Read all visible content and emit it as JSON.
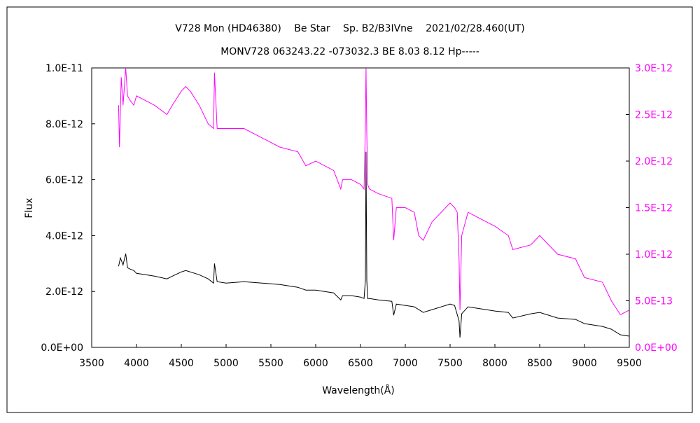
{
  "header": {
    "title": "V728 Mon (HD46380)　 Be Star　 Sp. B2/B3IVne　 2021/02/28.460(UT)",
    "subtitle": "MONV728 063243.22 -073032.3 BE 8.03 8.12 Hp-----"
  },
  "chart_data": {
    "type": "line",
    "xlabel": "Wavelength(Å)",
    "ylabel": "Flux",
    "xlim": [
      3500,
      9500
    ],
    "xticks": [
      3500,
      4000,
      4500,
      5000,
      5500,
      6000,
      6500,
      7000,
      7500,
      8000,
      8500,
      9000,
      9500
    ],
    "y_left": {
      "lim": [
        0,
        1e-11
      ],
      "ticks": [
        0,
        2e-12,
        4e-12,
        6e-12,
        8e-12,
        1e-11
      ],
      "tick_labels": [
        "0.0E+00",
        "2.0E-12",
        "4.0E-12",
        "6.0E-12",
        "8.0E-12",
        "1.0E-11"
      ]
    },
    "y_right": {
      "lim": [
        0,
        3e-12
      ],
      "ticks": [
        0,
        5e-13,
        1e-12,
        1.5e-12,
        2e-12,
        2.5e-12,
        3e-12
      ],
      "tick_labels": [
        "0.0E+00",
        "5.0E-13",
        "1.0E-12",
        "1.5E-12",
        "2.0E-12",
        "2.5E-12",
        "3.0E-12"
      ],
      "color": "#ff00ff"
    },
    "series": [
      {
        "axis": "left",
        "color": "#000000",
        "x": [
          3800,
          3820,
          3850,
          3880,
          3900,
          3930,
          3970,
          4000,
          4100,
          4200,
          4340,
          4400,
          4500,
          4550,
          4700,
          4800,
          4860,
          4870,
          4900,
          5000,
          5200,
          5400,
          5600,
          5800,
          5890,
          6000,
          6200,
          6280,
          6300,
          6400,
          6500,
          6540,
          6555,
          6562,
          6570,
          6580,
          6600,
          6700,
          6850,
          6870,
          6900,
          7000,
          7100,
          7200,
          7300,
          7500,
          7550,
          7600,
          7610,
          7630,
          7700,
          7800,
          8000,
          8150,
          8200,
          8400,
          8500,
          8700,
          8900,
          9000,
          9200,
          9300,
          9400,
          9500
        ],
        "y": [
          2.9e-12,
          3.2e-12,
          2.95e-12,
          3.35e-12,
          2.85e-12,
          2.8e-12,
          2.75e-12,
          2.65e-12,
          2.6e-12,
          2.55e-12,
          2.45e-12,
          2.55e-12,
          2.7e-12,
          2.75e-12,
          2.6e-12,
          2.45e-12,
          2.3e-12,
          3e-12,
          2.35e-12,
          2.3e-12,
          2.35e-12,
          2.3e-12,
          2.25e-12,
          2.15e-12,
          2.05e-12,
          2.05e-12,
          1.95e-12,
          1.7e-12,
          1.85e-12,
          1.85e-12,
          1.8e-12,
          1.75e-12,
          2.4e-12,
          7e-12,
          2.4e-12,
          1.75e-12,
          1.75e-12,
          1.7e-12,
          1.65e-12,
          1.15e-12,
          1.55e-12,
          1.5e-12,
          1.45e-12,
          1.25e-12,
          1.35e-12,
          1.55e-12,
          1.5e-12,
          9.5e-13,
          3.5e-13,
          1.2e-12,
          1.45e-12,
          1.4e-12,
          1.3e-12,
          1.25e-12,
          1.05e-12,
          1.2e-12,
          1.25e-12,
          1.05e-12,
          1e-12,
          8.5e-13,
          7.5e-13,
          6.5e-13,
          4.5e-13,
          4e-13
        ]
      },
      {
        "axis": "right",
        "color": "#ff00ff",
        "x": [
          3800,
          3810,
          3830,
          3850,
          3880,
          3900,
          3930,
          3970,
          4000,
          4100,
          4200,
          4340,
          4400,
          4500,
          4550,
          4600,
          4700,
          4800,
          4860,
          4870,
          4900,
          5000,
          5200,
          5400,
          5600,
          5800,
          5890,
          6000,
          6200,
          6280,
          6300,
          6400,
          6500,
          6540,
          6555,
          6562,
          6570,
          6580,
          6600,
          6700,
          6850,
          6870,
          6900,
          7000,
          7100,
          7150,
          7200,
          7300,
          7500,
          7550,
          7580,
          7600,
          7610,
          7630,
          7700,
          7800,
          8000,
          8150,
          8200,
          8400,
          8500,
          8700,
          8900,
          9000,
          9200,
          9300,
          9400,
          9500
        ],
        "y": [
          2.6e-12,
          2.15e-12,
          2.9e-12,
          2.6e-12,
          3e-12,
          2.7e-12,
          2.65e-12,
          2.6e-12,
          2.7e-12,
          2.65e-12,
          2.6e-12,
          2.5e-12,
          2.6e-12,
          2.75e-12,
          2.8e-12,
          2.75e-12,
          2.6e-12,
          2.4e-12,
          2.35e-12,
          2.95e-12,
          2.35e-12,
          2.35e-12,
          2.35e-12,
          2.25e-12,
          2.15e-12,
          2.1e-12,
          1.95e-12,
          2e-12,
          1.9e-12,
          1.7e-12,
          1.8e-12,
          1.8e-12,
          1.75e-12,
          1.7e-12,
          2.4e-12,
          3e-12,
          2.3e-12,
          1.75e-12,
          1.7e-12,
          1.65e-12,
          1.6e-12,
          1.15e-12,
          1.5e-12,
          1.5e-12,
          1.45e-12,
          1.2e-12,
          1.15e-12,
          1.35e-12,
          1.55e-12,
          1.5e-12,
          1.45e-12,
          9.5e-13,
          4e-13,
          1.2e-12,
          1.45e-12,
          1.4e-12,
          1.3e-12,
          1.2e-12,
          1.05e-12,
          1.1e-12,
          1.2e-12,
          1e-12,
          9.5e-13,
          7.5e-13,
          7e-13,
          5e-13,
          3.5e-13,
          4e-13
        ]
      }
    ]
  }
}
